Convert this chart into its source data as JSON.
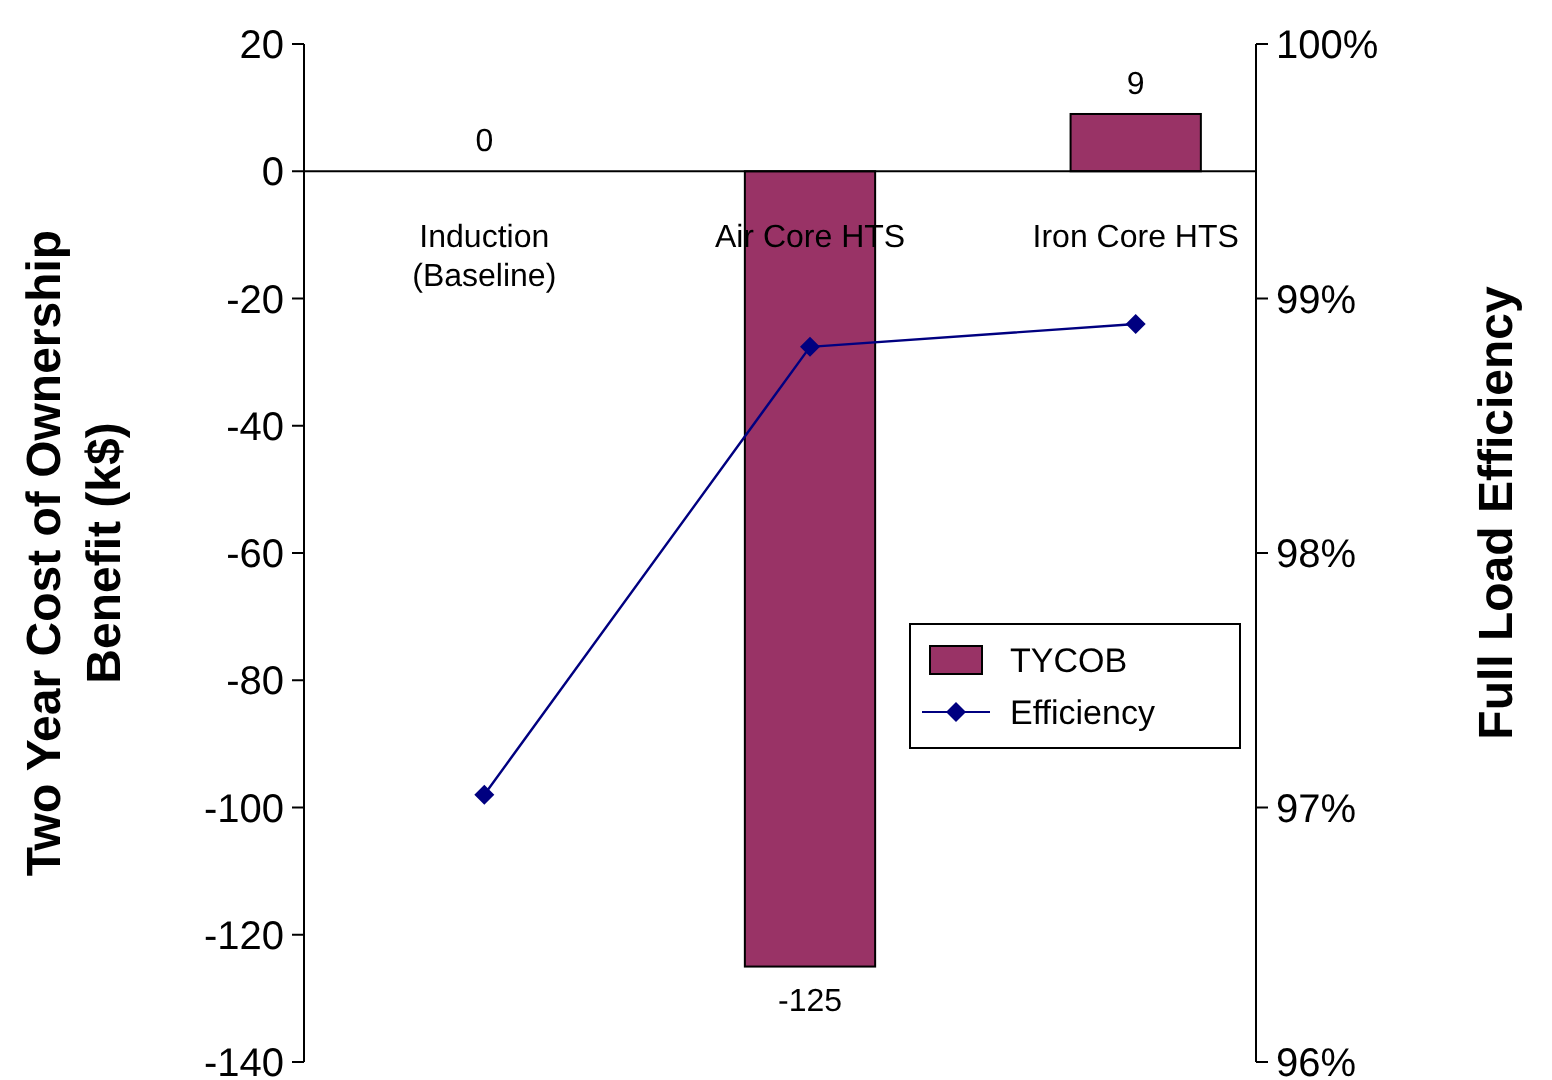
{
  "chart_data": {
    "type": "bar",
    "categories": [
      "Induction\n(Baseline)",
      "Air Core HTS",
      "Iron Core HTS"
    ],
    "series": [
      {
        "name": "TYCOB",
        "color": "#993366",
        "values": [
          0,
          -125,
          9
        ],
        "data_labels": true
      },
      {
        "name": "Efficiency",
        "type": "line",
        "axis": "y2",
        "color": "#000080",
        "values": [
          97.05,
          98.81,
          98.9
        ],
        "marker": "diamond"
      }
    ],
    "ylabel": "Two Year Cost of Ownership Benefit (k$)",
    "y2label": "Full Load Efficiency",
    "ylim": [
      -140,
      20
    ],
    "yticks": [
      -140,
      -120,
      -100,
      -80,
      -60,
      -40,
      -20,
      0,
      20
    ],
    "y2lim": [
      96,
      100
    ],
    "y2ticks": [
      {
        "value": 96,
        "label": "96%"
      },
      {
        "value": 97,
        "label": "97%"
      },
      {
        "value": 98,
        "label": "98%"
      },
      {
        "value": 99,
        "label": "99%"
      },
      {
        "value": 100,
        "label": "100%"
      }
    ],
    "legend": "right",
    "grid": false
  }
}
